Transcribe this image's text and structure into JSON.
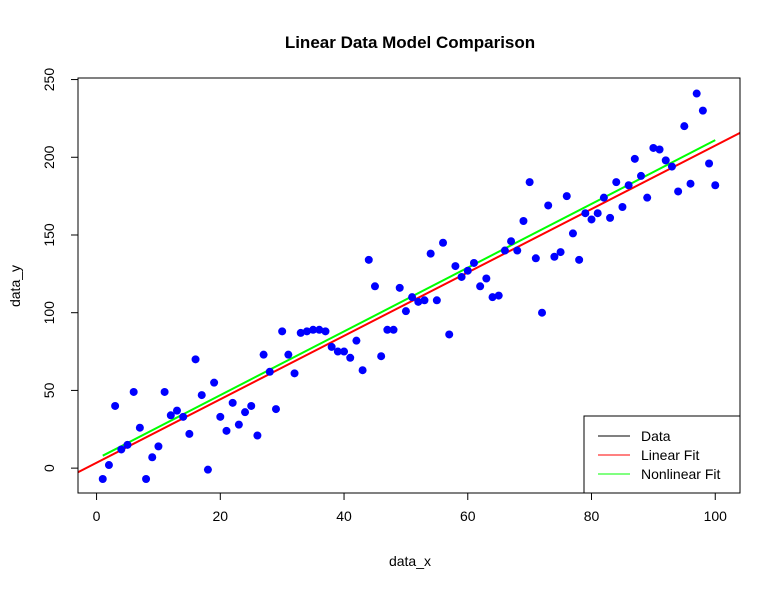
{
  "chart_data": {
    "type": "scatter",
    "title": "Linear Data Model Comparison",
    "xlabel": "data_x",
    "ylabel": "data_y",
    "xlim": [
      -3,
      104
    ],
    "ylim": [
      -16,
      251
    ],
    "xticks": [
      0,
      20,
      40,
      60,
      80,
      100
    ],
    "yticks": [
      0,
      50,
      100,
      150,
      200,
      250
    ],
    "legend": {
      "position": "bottom-right",
      "entries": [
        "Data",
        "Linear Fit",
        "Nonlinear Fit"
      ]
    },
    "colors": {
      "data": "#0000ff",
      "linear": "#ff0000",
      "nonlinear": "#00ff00",
      "legend_data_line": "#000000"
    },
    "series": [
      {
        "name": "Data",
        "x": [
          1,
          2,
          3,
          4,
          5,
          6,
          7,
          8,
          9,
          10,
          11,
          12,
          13,
          14,
          15,
          16,
          17,
          18,
          19,
          20,
          21,
          22,
          23,
          24,
          25,
          26,
          27,
          28,
          29,
          30,
          31,
          32,
          33,
          34,
          35,
          36,
          37,
          38,
          39,
          40,
          41,
          42,
          43,
          44,
          45,
          46,
          47,
          48,
          49,
          50,
          51,
          52,
          53,
          54,
          55,
          56,
          57,
          58,
          59,
          60,
          61,
          62,
          63,
          64,
          65,
          66,
          67,
          68,
          69,
          70,
          71,
          72,
          73,
          74,
          75,
          76,
          77,
          78,
          79,
          80,
          81,
          82,
          83,
          84,
          85,
          86,
          87,
          88,
          89,
          90,
          91,
          92,
          93,
          94,
          95,
          96,
          97,
          98,
          99,
          100
        ],
        "y": [
          -7,
          2,
          40,
          12,
          15,
          49,
          26,
          -7,
          7,
          14,
          49,
          34,
          37,
          33,
          22,
          70,
          47,
          -1,
          55,
          33,
          24,
          42,
          28,
          36,
          40,
          21,
          73,
          62,
          38,
          88,
          73,
          61,
          87,
          88,
          89,
          89,
          88,
          78,
          75,
          75,
          71,
          82,
          63,
          134,
          117,
          72,
          89,
          89,
          116,
          101,
          110,
          107,
          108,
          138,
          108,
          145,
          86,
          130,
          123,
          127,
          132,
          117,
          122,
          110,
          111,
          140,
          146,
          140,
          159,
          184,
          135,
          100,
          169,
          136,
          139,
          175,
          151,
          134,
          164,
          160,
          164,
          174,
          161,
          184,
          168,
          182,
          199,
          188,
          174,
          206,
          205,
          198,
          194,
          178,
          220,
          183,
          241,
          230,
          196,
          182
        ]
      },
      {
        "name": "Linear Fit",
        "intercept": 3.5,
        "slope": 2.04
      },
      {
        "name": "Nonlinear Fit",
        "x": [
          1,
          100
        ],
        "y": [
          8,
          211
        ]
      }
    ]
  }
}
